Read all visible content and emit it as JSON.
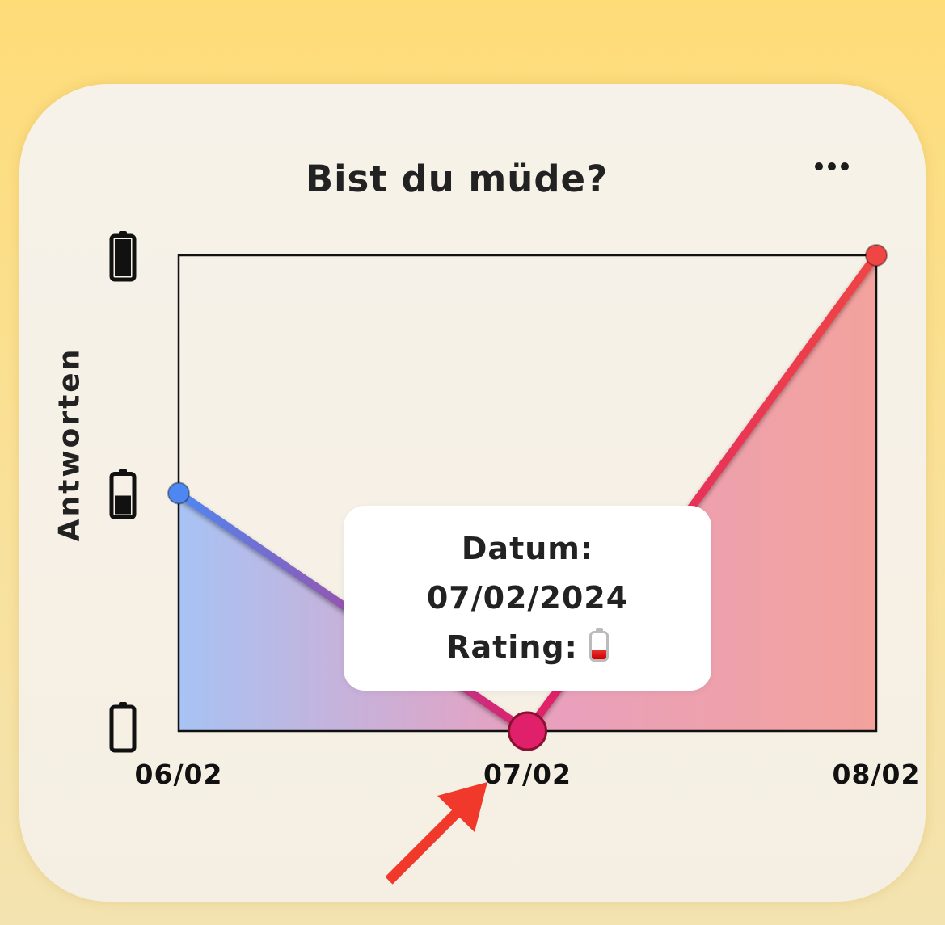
{
  "card": {
    "title": "Bist du müde?",
    "menu_icon": "more-horizontal-icon"
  },
  "colors": {
    "background": "#fedc78",
    "card": "#f6f0e6",
    "line_start": "#4f87f2",
    "line_mid": "#e0206a",
    "line_end": "#f04545",
    "tooltip_bg": "#ffffff"
  },
  "chart_data": {
    "type": "line",
    "title": "Bist du müde?",
    "xlabel": "",
    "ylabel": "Antworten",
    "categories": [
      "06/02",
      "07/02",
      "08/02"
    ],
    "values": [
      1,
      0,
      2
    ],
    "ylim": [
      0,
      2
    ],
    "y_ticks": [
      {
        "value": 2,
        "icon": "battery-full-icon"
      },
      {
        "value": 1,
        "icon": "battery-half-icon"
      },
      {
        "value": 0,
        "icon": "battery-empty-icon"
      }
    ],
    "grid": false,
    "area_fill": true,
    "selected_index": 1
  },
  "tooltip": {
    "date_label": "Datum:",
    "date_value": "07/02/2024",
    "rating_label": "Rating:",
    "rating_icon": "low-battery-icon"
  },
  "annotation": {
    "arrow_icon": "red-arrow-icon",
    "arrow_color": "#f0382b"
  }
}
